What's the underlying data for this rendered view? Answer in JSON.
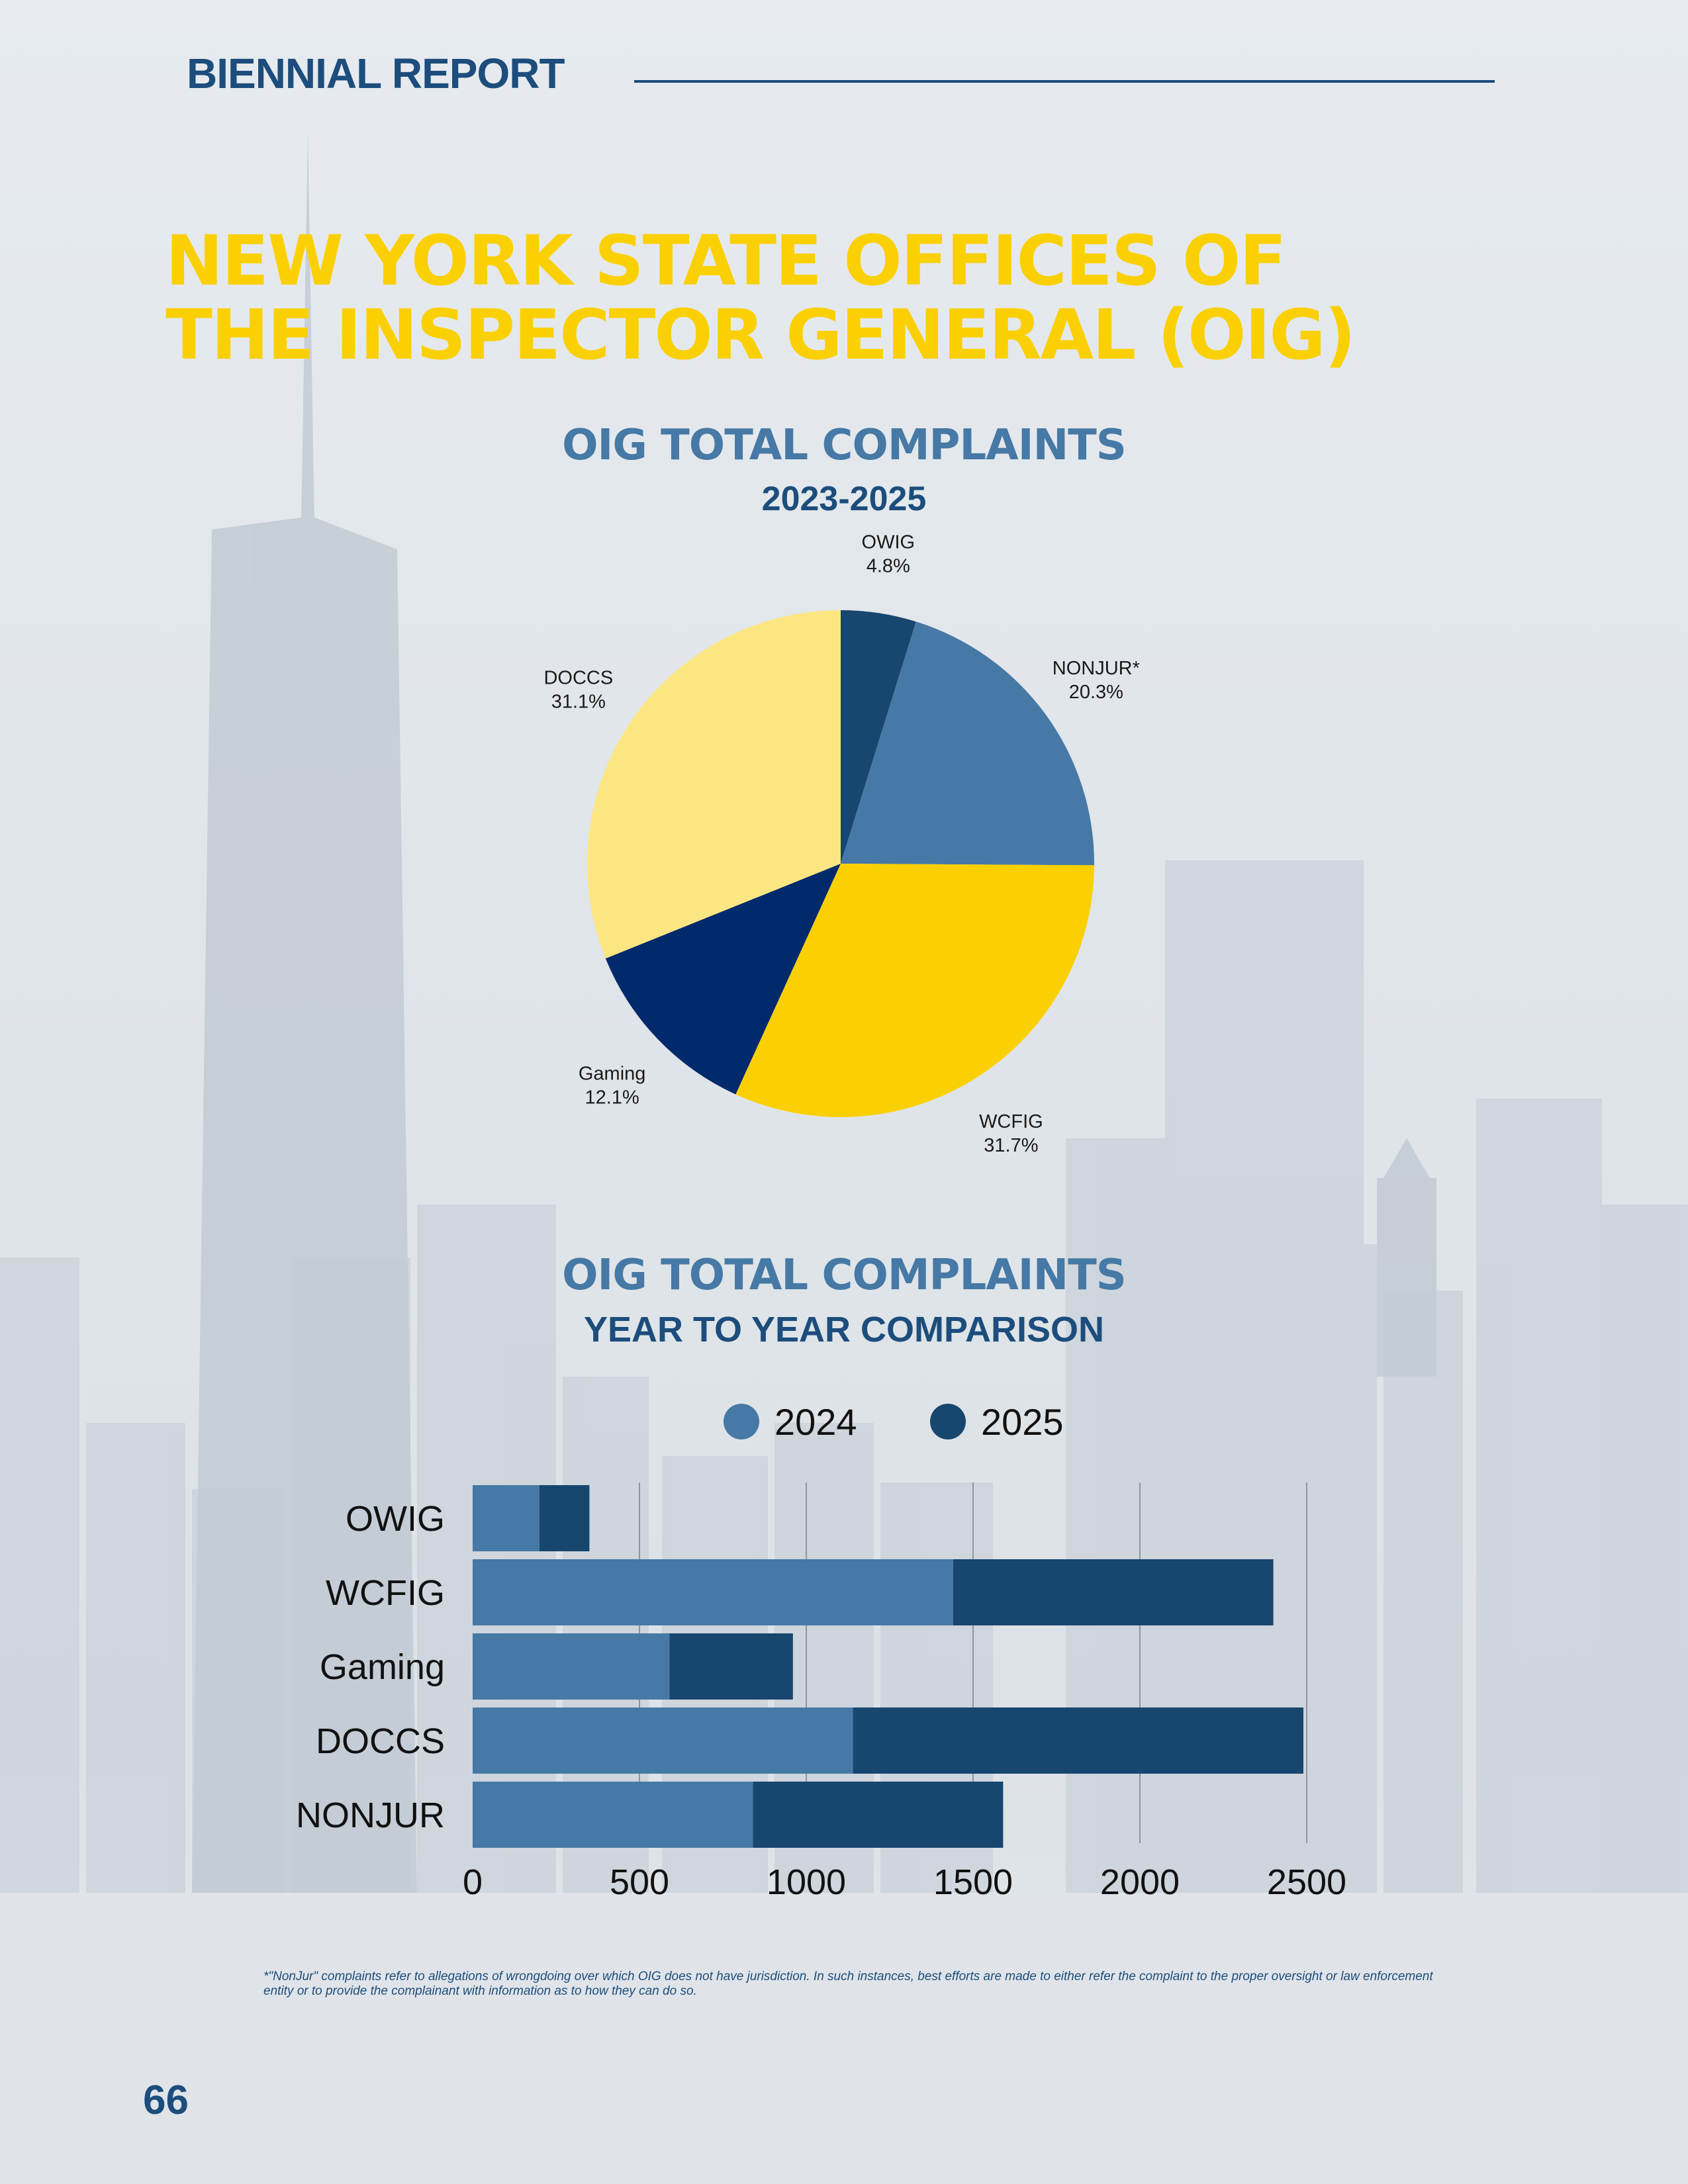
{
  "header": {
    "title": "BIENNIAL REPORT"
  },
  "main_title": {
    "line1": "NEW YORK STATE OFFICES OF",
    "line2": "THE INSPECTOR GENERAL (OIG)"
  },
  "colors": {
    "navy": "#002a6c",
    "dark_blue": "#17466f",
    "steel_blue": "#4679a5",
    "yellow": "#fbd003",
    "light_yellow": "#fce682",
    "title_blue": "#4679a5",
    "text_blue": "#1c4d7c"
  },
  "pie_section": {
    "title": "OIG TOTAL COMPLAINTS",
    "subtitle": "2023-2025"
  },
  "bar_section": {
    "title": "OIG TOTAL COMPLAINTS",
    "subtitle": "YEAR TO YEAR COMPARISON"
  },
  "chart_data": [
    {
      "type": "pie",
      "title": "OIG TOTAL COMPLAINTS",
      "subtitle": "2023-2025",
      "slices": [
        {
          "label": "OWIG",
          "value": 4.8,
          "value_label": "4.8%",
          "color": "#17466f"
        },
        {
          "label": "NONJUR*",
          "value": 20.3,
          "value_label": "20.3%",
          "color": "#4679a5"
        },
        {
          "label": "WCFIG",
          "value": 31.7,
          "value_label": "31.7%",
          "color": "#fbd003"
        },
        {
          "label": "Gaming",
          "value": 12.1,
          "value_label": "12.1%",
          "color": "#002a6c"
        },
        {
          "label": "DOCCS",
          "value": 31.1,
          "value_label": "31.1%",
          "color": "#fce682"
        }
      ]
    },
    {
      "type": "bar",
      "orientation": "horizontal",
      "stacked": true,
      "title": "OIG TOTAL COMPLAINTS",
      "subtitle": "YEAR TO YEAR COMPARISON",
      "categories": [
        "OWIG",
        "WCFIG",
        "Gaming",
        "DOCCS",
        "NONJUR"
      ],
      "series": [
        {
          "name": "2024",
          "values": [
            200,
            1440,
            590,
            1140,
            840
          ],
          "color": "#4679a5"
        },
        {
          "name": "2025",
          "values": [
            150,
            960,
            370,
            1350,
            750
          ],
          "color": "#17466f"
        }
      ],
      "xlim": [
        0,
        2500
      ],
      "xticks": [
        0,
        500,
        1000,
        1500,
        2000,
        2500
      ],
      "grid": true,
      "legend_placement": "top"
    }
  ],
  "footnote": "*\"NonJur\" complaints refer to allegations of wrongdoing over which OIG does not have jurisdiction. In such instances, best efforts are made to either refer the complaint to the proper oversight or law enforcement entity or to provide the complainant with information as to how they can do so.",
  "page_number": "66"
}
